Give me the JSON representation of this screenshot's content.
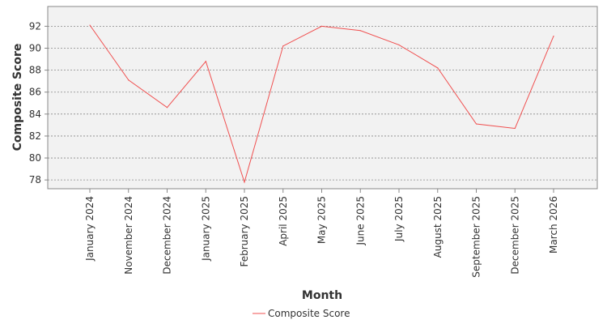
{
  "chart_data": {
    "type": "line",
    "title": "",
    "xlabel": "Month",
    "ylabel": "Composite Score",
    "categories": [
      "January 2024",
      "November 2024",
      "December 2024",
      "January 2025",
      "February 2025",
      "April 2025",
      "May 2025",
      "June 2025",
      "July 2025",
      "August 2025",
      "September 2025",
      "December 2025",
      "March 2026"
    ],
    "series": [
      {
        "name": "Composite Score",
        "color": "#f05050",
        "values": [
          92.1,
          87.1,
          84.6,
          88.8,
          77.8,
          90.2,
          92.0,
          91.6,
          90.3,
          88.2,
          83.1,
          82.7,
          91.1
        ]
      }
    ],
    "yticks": [
      "78",
      "80",
      "82",
      "84",
      "86",
      "88",
      "90",
      "92"
    ],
    "ylim": [
      77.2,
      93.8
    ],
    "grid": true,
    "legend_position": "bottom-center",
    "plot_background": "#f2f2f2",
    "grid_color": "#888888"
  }
}
